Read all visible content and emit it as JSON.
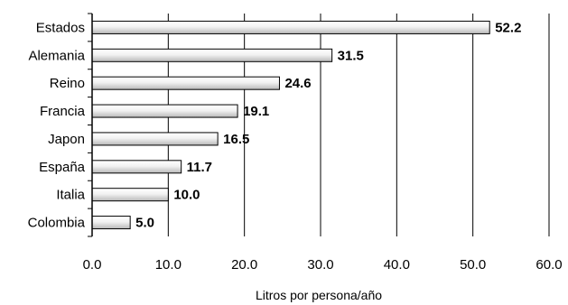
{
  "chart_data": {
    "type": "bar",
    "orientation": "horizontal",
    "categories": [
      "Estados",
      "Alemania",
      "Reino",
      "Francia",
      "Japon",
      "España",
      "Italia",
      "Colombia"
    ],
    "values": [
      52.2,
      31.5,
      24.6,
      19.1,
      16.5,
      11.7,
      10.0,
      5.0
    ],
    "data_labels": [
      "52.2",
      "31.5",
      "24.6",
      "19.1",
      "16.5",
      "11.7",
      "10.0",
      "5.0"
    ],
    "xlabel": "Litros por persona/año",
    "ylabel": "",
    "xlim": [
      0,
      60
    ],
    "xticks": [
      0,
      10,
      20,
      30,
      40,
      50,
      60
    ],
    "xtick_labels": [
      "0.0",
      "10.0",
      "20.0",
      "30.0",
      "40.0",
      "50.0",
      "60.0"
    ],
    "grid": "vertical",
    "legend": "none",
    "colors": {
      "bar_fill_light": "#ffffff",
      "bar_fill_dark": "#bdbdbd",
      "bar_stroke": "#000000",
      "gridline": "#000000"
    }
  }
}
